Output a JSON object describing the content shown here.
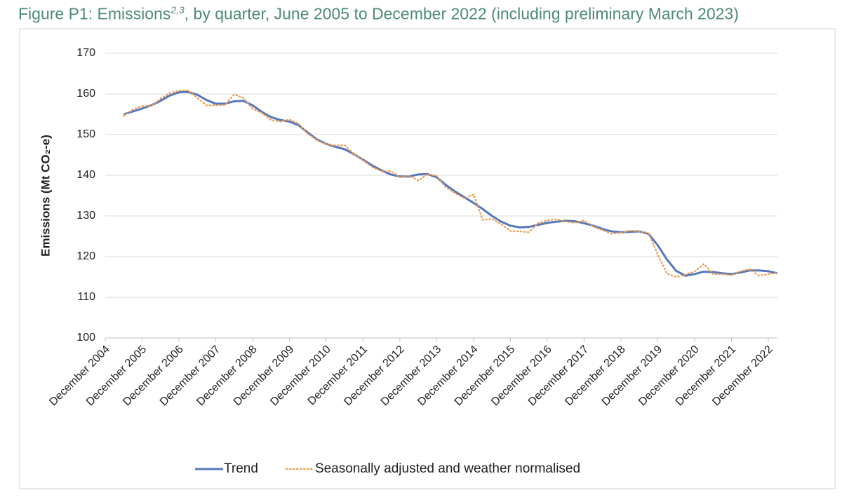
{
  "chart_data": {
    "type": "line",
    "title_start": "Figure P1: Emissions",
    "title_superscript": "2,3",
    "title_end": ", by quarter, June 2005 to December 2022 (including preliminary March 2023)",
    "y_label": "Emissions (Mt CO₂-e)",
    "categories": [
      "December 2004",
      null,
      null,
      null,
      "December 2005",
      null,
      null,
      null,
      "December 2006",
      null,
      null,
      null,
      "December 2007",
      null,
      null,
      null,
      "December 2008",
      null,
      null,
      null,
      "December 2009",
      null,
      null,
      null,
      "December 2010",
      null,
      null,
      null,
      "December 2011",
      null,
      null,
      null,
      "December 2012",
      null,
      null,
      null,
      "December 2013",
      null,
      null,
      null,
      "December 2014",
      null,
      null,
      null,
      "December 2015",
      null,
      null,
      null,
      "December 2016",
      null,
      null,
      null,
      "December 2017",
      null,
      null,
      null,
      "December 2018",
      null,
      null,
      null,
      "December 2019",
      null,
      null,
      null,
      "December 2020",
      null,
      null,
      null,
      "December 2021",
      null,
      null,
      null,
      "December 2022",
      null
    ],
    "series": [
      {
        "name": "Trend",
        "color": "#5577bb",
        "style": "solid",
        "values": [
          null,
          null,
          155.0,
          155.7,
          156.4,
          157.2,
          158.3,
          159.6,
          160.4,
          160.5,
          159.8,
          158.5,
          157.6,
          157.6,
          158.2,
          158.3,
          157.2,
          155.6,
          154.3,
          153.6,
          153.2,
          152.3,
          150.5,
          148.8,
          147.7,
          147.0,
          146.4,
          145.2,
          143.8,
          142.4,
          141.2,
          140.2,
          139.7,
          139.7,
          140.2,
          140.3,
          139.5,
          137.6,
          136.0,
          134.6,
          133.2,
          131.7,
          130.0,
          128.6,
          127.6,
          127.2,
          127.3,
          127.8,
          128.3,
          128.6,
          128.8,
          128.7,
          128.2,
          127.6,
          126.8,
          126.2,
          126.0,
          126.1,
          126.2,
          125.6,
          122.8,
          119.3,
          116.5,
          115.3,
          115.7,
          116.3,
          116.2,
          115.9,
          115.7,
          116.1,
          116.6,
          116.6,
          116.4,
          115.9
        ]
      },
      {
        "name": "Seasonally adjusted and weather normalised",
        "color": "#ed9b4f",
        "style": "dotted",
        "values": [
          null,
          null,
          154.6,
          156.2,
          157.0,
          157.0,
          158.8,
          160.2,
          160.8,
          160.9,
          159.0,
          157.2,
          157.2,
          157.3,
          159.9,
          159.0,
          156.4,
          155.3,
          153.6,
          153.2,
          153.7,
          152.7,
          150.2,
          148.6,
          147.6,
          147.3,
          147.4,
          145.2,
          143.7,
          142.0,
          141.0,
          141.0,
          139.5,
          139.9,
          138.7,
          140.3,
          139.8,
          137.0,
          135.6,
          134.3,
          135.3,
          129.0,
          129.3,
          128.0,
          126.3,
          126.2,
          126.0,
          128.2,
          128.9,
          129.2,
          128.6,
          128.3,
          128.9,
          127.4,
          126.5,
          125.6,
          125.9,
          126.4,
          126.2,
          125.8,
          120.5,
          115.8,
          115.0,
          115.6,
          116.3,
          118.2,
          115.7,
          115.7,
          115.4,
          116.4,
          116.9,
          115.3,
          115.7,
          116.0
        ]
      }
    ],
    "ylim": [
      100,
      170
    ],
    "yticks": [
      100,
      110,
      120,
      130,
      140,
      150,
      160,
      170
    ],
    "grid": true,
    "legend": "bottom"
  }
}
